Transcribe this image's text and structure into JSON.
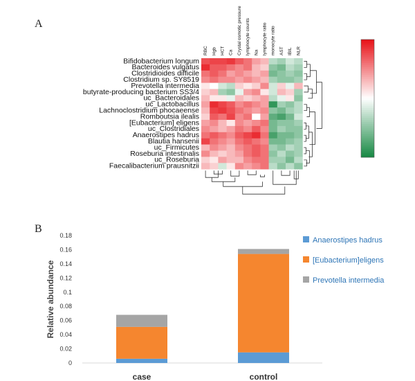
{
  "panel_a": {
    "letter": "A"
  },
  "panel_b": {
    "letter": "B"
  },
  "colors": {
    "heat_high": "#e8151b",
    "heat_mid": "#ffffff",
    "heat_low": "#1a8a46",
    "anaerostipes": "#5b9bd5",
    "eubacterium": "#f5862f",
    "prevotella": "#a5a5a5"
  },
  "chart_data": [
    {
      "type": "heatmap",
      "title": "",
      "rows": [
        "Bifidobacterium longum",
        "Bacteroides vulgatus",
        "Clostridioides difficile",
        "Clostridium sp. SY8519",
        "Prevotella intermedia",
        "butyrate-producing bacterium SS3/4",
        "uc_Bacteroidales",
        "uc_Lactobacillus",
        "Lachnoclostridium phocaeense",
        "Romboutsia ilealis",
        "[Eubacterium] eligens",
        "uc_Clostridiales",
        "Anaerostipes hadrus",
        "Blautia hansenii",
        "uc_Firmicutes",
        "Roseburia intestinalis",
        "uc_Roseburia",
        "Faecalibacterium prausnitzii"
      ],
      "columns": [
        "RBC",
        "Hgb",
        "HCT",
        "Ca",
        "Crystal osmotic pressure",
        "lymphocyte counts",
        "Na",
        "lymphocyte ratio",
        "monocyte ratio",
        "AST",
        "IBIL",
        "NLR"
      ],
      "values": [
        [
          0.75,
          0.8,
          0.8,
          0.85,
          0.7,
          0.6,
          0.4,
          0.3,
          -0.3,
          -0.4,
          -0.2,
          -0.3
        ],
        [
          0.9,
          0.7,
          0.7,
          0.6,
          0.5,
          0.6,
          0.3,
          0.2,
          -0.5,
          -0.6,
          -0.3,
          -0.4
        ],
        [
          0.6,
          0.7,
          0.6,
          0.4,
          0.5,
          0.4,
          0.3,
          0.4,
          -0.6,
          -0.5,
          -0.4,
          -0.5
        ],
        [
          0.5,
          0.6,
          0.5,
          0.5,
          0.4,
          0.5,
          0.4,
          0.3,
          -0.4,
          -0.5,
          -0.5,
          -0.4
        ],
        [
          0.1,
          0.0,
          -0.2,
          -0.3,
          0.2,
          0.1,
          0.2,
          0.5,
          -0.2,
          0.2,
          -0.1,
          0.3
        ],
        [
          0.2,
          0.3,
          -0.4,
          -0.5,
          -0.1,
          0.4,
          0.5,
          0.1,
          -0.2,
          0.3,
          0.2,
          -0.4
        ],
        [
          0.3,
          0.1,
          0.1,
          -0.1,
          0.3,
          0.2,
          0.3,
          0.4,
          -0.3,
          -0.1,
          0.1,
          -0.5
        ],
        [
          0.4,
          0.9,
          0.8,
          0.7,
          0.5,
          0.6,
          0.5,
          0.4,
          -0.9,
          -0.4,
          -0.5,
          -0.3
        ],
        [
          0.3,
          0.8,
          0.85,
          0.75,
          0.6,
          0.5,
          0.4,
          0.5,
          -0.5,
          -0.6,
          -0.4,
          -0.3
        ],
        [
          0.2,
          0.7,
          0.6,
          0.8,
          0.5,
          0.6,
          0.0,
          0.4,
          -0.7,
          -0.8,
          -0.6,
          -0.2
        ],
        [
          0.4,
          0.5,
          0.3,
          0.1,
          0.5,
          0.4,
          0.5,
          0.6,
          -0.6,
          -0.5,
          -0.5,
          -0.4
        ],
        [
          0.5,
          0.4,
          0.3,
          0.4,
          0.6,
          0.5,
          0.7,
          0.5,
          -0.6,
          -0.4,
          -0.5,
          -0.5
        ],
        [
          0.6,
          0.7,
          0.6,
          0.5,
          0.7,
          0.8,
          0.9,
          0.6,
          -0.8,
          -0.6,
          -0.6,
          -0.5
        ],
        [
          0.8,
          0.6,
          0.5,
          0.4,
          0.6,
          0.7,
          0.6,
          0.5,
          -0.6,
          -0.6,
          -0.5,
          -0.4
        ],
        [
          0.3,
          0.5,
          0.4,
          0.3,
          0.5,
          0.6,
          0.7,
          0.6,
          -0.4,
          -0.5,
          -0.3,
          -0.4
        ],
        [
          0.5,
          0.3,
          0.2,
          0.3,
          0.4,
          0.6,
          0.7,
          0.6,
          -0.5,
          -0.3,
          -0.5,
          -0.4
        ],
        [
          0.2,
          0.1,
          0.4,
          0.3,
          0.3,
          0.5,
          0.6,
          0.6,
          -0.4,
          -0.4,
          -0.6,
          -0.3
        ],
        [
          0.3,
          0.2,
          -0.2,
          0.1,
          0.5,
          0.4,
          0.5,
          0.6,
          -0.3,
          -0.5,
          -0.3,
          -0.5
        ]
      ],
      "color_scale": {
        "low": "#1a8a46",
        "mid": "#ffffff",
        "high": "#e8151b"
      }
    },
    {
      "type": "bar",
      "stacked": true,
      "categories": [
        "case",
        "control"
      ],
      "series": [
        {
          "name": "Anaerostipes hadrus",
          "values": [
            0.006,
            0.015
          ],
          "color": "#5b9bd5"
        },
        {
          "name": "[Eubacterium]eligens",
          "values": [
            0.045,
            0.139
          ],
          "color": "#f5862f"
        },
        {
          "name": "Prevotella intermedia",
          "values": [
            0.017,
            0.007
          ],
          "color": "#a5a5a5"
        }
      ],
      "ylabel": "Relative abundance",
      "xlabel": "",
      "ylim": [
        0,
        0.18
      ],
      "yticks": [
        "0",
        "0.02",
        "0.04",
        "0.06",
        "0.08",
        "0.1",
        "0.12",
        "0.14",
        "0.16",
        "0.18"
      ],
      "legend_position": "right"
    }
  ]
}
